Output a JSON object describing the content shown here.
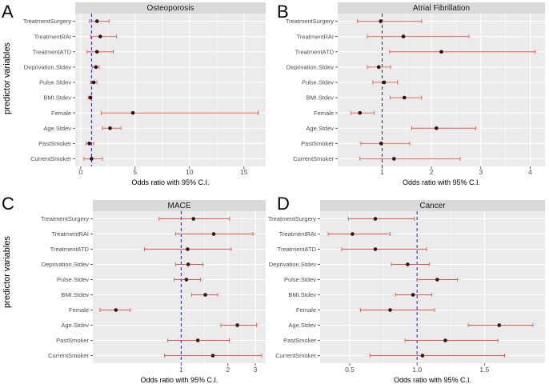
{
  "figure": {
    "y_axis_title": "predictor variables",
    "x_axis_title": "Odds ratio with 95% C.I.",
    "colors": {
      "panel_bg": "#ebebeb",
      "grid": "#ffffff",
      "strip_bg": "#d9d9d9",
      "ci_line": "#e8584d",
      "point": "#2a1010",
      "reference_line": "#2b2bd9"
    }
  },
  "chart_data": [
    {
      "type": "forest",
      "panel": "A",
      "title": "Osteoporosis",
      "xlabel": "Odds ratio with 95% C.I.",
      "ylabel": "predictor variables",
      "xlim": [
        -0.5,
        17
      ],
      "xscale": "linear",
      "xticks": [
        0,
        5,
        10,
        15
      ],
      "xtick_labels": [
        "0",
        "5",
        "10",
        "15"
      ],
      "reference": 1,
      "rows": [
        {
          "label": "TreatmentSurgery",
          "or": 1.5,
          "lo": 0.8,
          "hi": 2.6
        },
        {
          "label": "TreatmentRAI",
          "or": 1.8,
          "lo": 0.9,
          "hi": 3.3
        },
        {
          "label": "TreatmentATD",
          "or": 1.5,
          "lo": 0.6,
          "hi": 3.0
        },
        {
          "label": "Deprivation.Stdev",
          "or": 1.4,
          "lo": 1.1,
          "hi": 1.7
        },
        {
          "label": "Pulse.Stdev",
          "or": 1.2,
          "lo": 0.9,
          "hi": 1.5
        },
        {
          "label": "BMI.Stdev",
          "or": 0.9,
          "lo": 0.7,
          "hi": 1.0
        },
        {
          "label": "Female",
          "or": 4.8,
          "lo": 1.9,
          "hi": 16.3
        },
        {
          "label": "Age.Stdev",
          "or": 2.7,
          "lo": 2.0,
          "hi": 3.7
        },
        {
          "label": "PastSmoker",
          "or": 0.8,
          "lo": 0.5,
          "hi": 1.2
        },
        {
          "label": "CurrentSmoker",
          "or": 1.0,
          "lo": 0.3,
          "hi": 2.0
        }
      ]
    },
    {
      "type": "forest",
      "panel": "B",
      "title": "Atrial Fibrillation",
      "xlabel": "Odds ratio with 95% C.I.",
      "ylabel": "predictor variables",
      "xlim": [
        0.1,
        4.3
      ],
      "xscale": "linear",
      "xticks": [
        1,
        2,
        3,
        4
      ],
      "xtick_labels": [
        "1",
        "2",
        "3",
        "4"
      ],
      "reference": 1,
      "rows": [
        {
          "label": "TreatmentSurgery",
          "or": 0.97,
          "lo": 0.5,
          "hi": 1.8
        },
        {
          "label": "TreatmentRAI",
          "or": 1.43,
          "lo": 0.7,
          "hi": 2.76
        },
        {
          "label": "TreatmentATD",
          "or": 2.2,
          "lo": 1.15,
          "hi": 4.1
        },
        {
          "label": "Deprivation.Stdev",
          "or": 0.93,
          "lo": 0.7,
          "hi": 1.17
        },
        {
          "label": "Pulse.Stdev",
          "or": 1.04,
          "lo": 0.81,
          "hi": 1.31
        },
        {
          "label": "BMI.Stdev",
          "or": 1.45,
          "lo": 1.16,
          "hi": 1.8
        },
        {
          "label": "Female",
          "or": 0.55,
          "lo": 0.37,
          "hi": 0.84
        },
        {
          "label": "Age.Stdev",
          "or": 2.1,
          "lo": 1.6,
          "hi": 2.9
        },
        {
          "label": "PastSmoker",
          "or": 0.98,
          "lo": 0.57,
          "hi": 1.56
        },
        {
          "label": "CurrentSmoker",
          "or": 1.24,
          "lo": 0.55,
          "hi": 2.58
        }
      ]
    },
    {
      "type": "forest",
      "panel": "C",
      "title": "MACE",
      "xlabel": "Odds ratio with 95% C.I.",
      "ylabel": "predictor variables",
      "xlim": [
        0.27,
        3.5
      ],
      "xscale": "log",
      "xticks": [
        1,
        2,
        3
      ],
      "xtick_labels": [
        "1",
        "2",
        "3"
      ],
      "reference": 1,
      "rows": [
        {
          "label": "TreatmentSurgery",
          "or": 1.2,
          "lo": 0.72,
          "hi": 2.05
        },
        {
          "label": "TreatmentRAI",
          "or": 1.62,
          "lo": 0.92,
          "hi": 2.9
        },
        {
          "label": "TreatmentATD",
          "or": 1.1,
          "lo": 0.58,
          "hi": 2.1
        },
        {
          "label": "Deprivation.Stdev",
          "or": 1.11,
          "lo": 0.92,
          "hi": 1.38
        },
        {
          "label": "Pulse.Stdev",
          "or": 1.08,
          "lo": 0.9,
          "hi": 1.33
        },
        {
          "label": "BMI.Stdev",
          "or": 1.43,
          "lo": 1.17,
          "hi": 1.72
        },
        {
          "label": "Female",
          "or": 0.38,
          "lo": 0.3,
          "hi": 0.47
        },
        {
          "label": "Age.Stdev",
          "or": 2.3,
          "lo": 1.8,
          "hi": 3.06
        },
        {
          "label": "PastSmoker",
          "or": 1.28,
          "lo": 0.82,
          "hi": 2.04
        },
        {
          "label": "CurrentSmoker",
          "or": 1.6,
          "lo": 0.78,
          "hi": 3.3
        }
      ]
    },
    {
      "type": "forest",
      "panel": "D",
      "title": "Cancer",
      "xlabel": "Odds ratio with 95% C.I.",
      "ylabel": "predictor variables",
      "xlim": [
        0.28,
        1.95
      ],
      "xscale": "linear",
      "xticks": [
        0.5,
        1.0,
        1.5
      ],
      "xtick_labels": [
        "0.5",
        "1.0",
        "1.5"
      ],
      "reference": 1,
      "rows": [
        {
          "label": "TreatmentSurgery",
          "or": 0.69,
          "lo": 0.49,
          "hi": 0.98
        },
        {
          "label": "TreatmentRAI",
          "or": 0.52,
          "lo": 0.34,
          "hi": 0.8
        },
        {
          "label": "TreatmentATD",
          "or": 0.69,
          "lo": 0.44,
          "hi": 1.07
        },
        {
          "label": "Deprivation.Stdev",
          "or": 0.93,
          "lo": 0.81,
          "hi": 1.09
        },
        {
          "label": "Pulse.Stdev",
          "or": 1.15,
          "lo": 1.0,
          "hi": 1.3
        },
        {
          "label": "BMI.Stdev",
          "or": 0.97,
          "lo": 0.84,
          "hi": 1.11
        },
        {
          "label": "Female",
          "or": 0.8,
          "lo": 0.58,
          "hi": 1.13
        },
        {
          "label": "Age.Stdev",
          "or": 1.61,
          "lo": 1.38,
          "hi": 1.86
        },
        {
          "label": "PastSmoker",
          "or": 1.21,
          "lo": 0.91,
          "hi": 1.6
        },
        {
          "label": "CurrentSmoker",
          "or": 1.04,
          "lo": 0.65,
          "hi": 1.65
        }
      ]
    }
  ]
}
